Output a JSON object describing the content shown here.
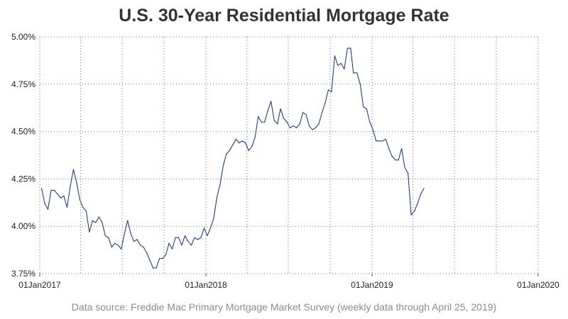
{
  "chart_data": {
    "type": "line",
    "title": "U.S. 30-Year Residential Mortgage Rate",
    "subtitle": "",
    "xlabel": "",
    "ylabel": "",
    "source_note": "Data source: Freddie Mac Primary Mortgage Market Survey (weekly data through April 25, 2019)",
    "x_axis": {
      "type": "date",
      "range": [
        "2017-01-01",
        "2020-01-01"
      ],
      "tick_values": [
        "2017-01-01",
        "2018-01-01",
        "2019-01-01",
        "2020-01-01"
      ],
      "tick_labels": [
        "01Jan2017",
        "01Jan2018",
        "01Jan2019",
        "01Jan2020"
      ],
      "minor_tick_values": [
        "2017-04-01",
        "2017-07-01",
        "2017-10-01",
        "2018-04-01",
        "2018-07-01",
        "2018-10-01",
        "2019-04-01",
        "2019-07-01",
        "2019-10-01"
      ]
    },
    "y_axis": {
      "range": [
        3.75,
        5.0
      ],
      "tick_values": [
        3.75,
        4.0,
        4.25,
        4.5,
        4.75,
        5.0
      ],
      "tick_labels": [
        "3.75%",
        "4.00%",
        "4.25%",
        "4.50%",
        "4.75%",
        "5.00%"
      ]
    },
    "grid": true,
    "grid_style": "dotted",
    "line_color": "#1f3f8f",
    "series": [
      {
        "name": "",
        "x": [
          "2017-01-05",
          "2017-01-12",
          "2017-01-19",
          "2017-01-26",
          "2017-02-02",
          "2017-02-09",
          "2017-02-16",
          "2017-02-23",
          "2017-03-02",
          "2017-03-09",
          "2017-03-16",
          "2017-03-23",
          "2017-03-30",
          "2017-04-06",
          "2017-04-13",
          "2017-04-20",
          "2017-04-27",
          "2017-05-04",
          "2017-05-11",
          "2017-05-18",
          "2017-05-25",
          "2017-06-01",
          "2017-06-08",
          "2017-06-15",
          "2017-06-22",
          "2017-06-29",
          "2017-07-06",
          "2017-07-13",
          "2017-07-20",
          "2017-07-27",
          "2017-08-03",
          "2017-08-10",
          "2017-08-17",
          "2017-08-24",
          "2017-08-31",
          "2017-09-07",
          "2017-09-14",
          "2017-09-21",
          "2017-09-28",
          "2017-10-05",
          "2017-10-12",
          "2017-10-19",
          "2017-10-26",
          "2017-11-02",
          "2017-11-09",
          "2017-11-16",
          "2017-11-23",
          "2017-11-30",
          "2017-12-07",
          "2017-12-14",
          "2017-12-21",
          "2017-12-28",
          "2018-01-04",
          "2018-01-11",
          "2018-01-18",
          "2018-01-25",
          "2018-02-01",
          "2018-02-08",
          "2018-02-15",
          "2018-02-22",
          "2018-03-01",
          "2018-03-08",
          "2018-03-15",
          "2018-03-22",
          "2018-03-29",
          "2018-04-05",
          "2018-04-12",
          "2018-04-19",
          "2018-04-26",
          "2018-05-03",
          "2018-05-10",
          "2018-05-17",
          "2018-05-24",
          "2018-05-31",
          "2018-06-07",
          "2018-06-14",
          "2018-06-21",
          "2018-06-28",
          "2018-07-05",
          "2018-07-12",
          "2018-07-19",
          "2018-07-26",
          "2018-08-02",
          "2018-08-09",
          "2018-08-16",
          "2018-08-23",
          "2018-08-30",
          "2018-09-06",
          "2018-09-13",
          "2018-09-20",
          "2018-09-27",
          "2018-10-04",
          "2018-10-11",
          "2018-10-18",
          "2018-10-25",
          "2018-11-01",
          "2018-11-08",
          "2018-11-15",
          "2018-11-21",
          "2018-11-29",
          "2018-12-06",
          "2018-12-13",
          "2018-12-20",
          "2018-12-27",
          "2019-01-03",
          "2019-01-10",
          "2019-01-17",
          "2019-01-24",
          "2019-01-31",
          "2019-02-07",
          "2019-02-14",
          "2019-02-21",
          "2019-02-28",
          "2019-03-07",
          "2019-03-14",
          "2019-03-21",
          "2019-03-28",
          "2019-04-04",
          "2019-04-11",
          "2019-04-18",
          "2019-04-25"
        ],
        "values": [
          4.2,
          4.12,
          4.09,
          4.19,
          4.19,
          4.17,
          4.15,
          4.16,
          4.1,
          4.21,
          4.3,
          4.23,
          4.14,
          4.1,
          4.08,
          3.97,
          4.03,
          4.02,
          4.05,
          4.02,
          3.95,
          3.94,
          3.89,
          3.91,
          3.9,
          3.88,
          3.96,
          4.03,
          3.96,
          3.92,
          3.93,
          3.9,
          3.89,
          3.86,
          3.82,
          3.78,
          3.78,
          3.83,
          3.83,
          3.85,
          3.91,
          3.88,
          3.94,
          3.94,
          3.9,
          3.95,
          3.92,
          3.9,
          3.94,
          3.93,
          3.94,
          3.99,
          3.95,
          3.99,
          4.04,
          4.15,
          4.22,
          4.32,
          4.38,
          4.4,
          4.43,
          4.46,
          4.44,
          4.45,
          4.44,
          4.4,
          4.42,
          4.47,
          4.58,
          4.55,
          4.55,
          4.61,
          4.66,
          4.56,
          4.54,
          4.62,
          4.57,
          4.55,
          4.52,
          4.53,
          4.52,
          4.54,
          4.6,
          4.59,
          4.53,
          4.51,
          4.52,
          4.54,
          4.6,
          4.65,
          4.72,
          4.71,
          4.9,
          4.85,
          4.86,
          4.83,
          4.94,
          4.94,
          4.81,
          4.81,
          4.75,
          4.63,
          4.62,
          4.55,
          4.51,
          4.45,
          4.45,
          4.45,
          4.46,
          4.41,
          4.37,
          4.35,
          4.35,
          4.41,
          4.31,
          4.28,
          4.06,
          4.08,
          4.12,
          4.17,
          4.2
        ]
      }
    ]
  }
}
